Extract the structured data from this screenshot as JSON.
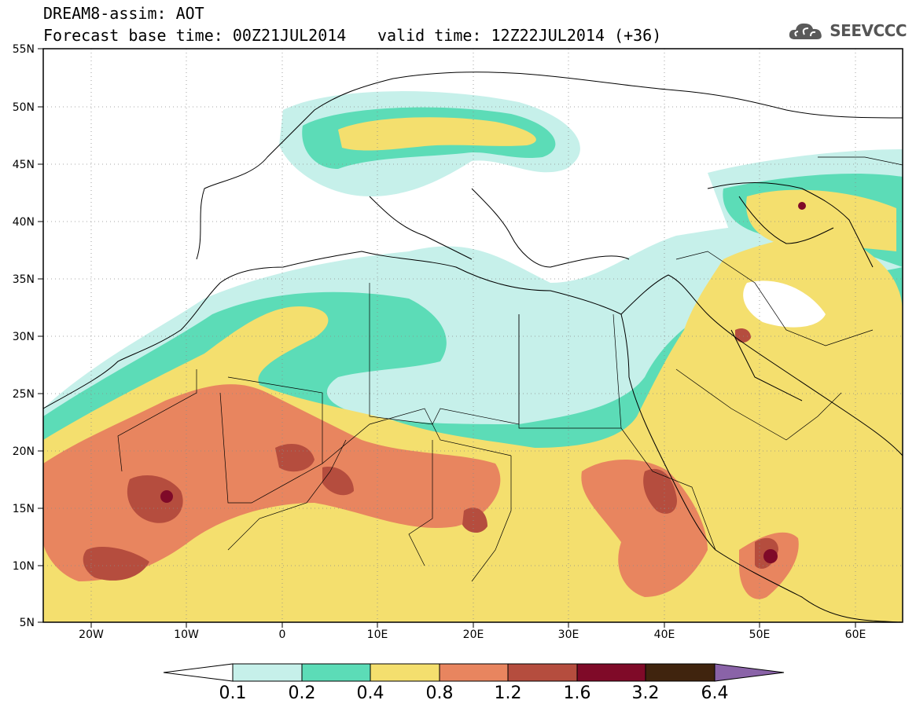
{
  "header": {
    "title_line1": "DREAM8-assim: AOT",
    "base_time_label": "Forecast base time: 00Z21JUL2014",
    "valid_time_label": "valid time: 12Z22JUL2014 (+36)"
  },
  "logo": {
    "text": "SEEVCCC",
    "icon": "cloud-icon"
  },
  "map": {
    "lat_ticks": [
      "55N",
      "50N",
      "45N",
      "40N",
      "35N",
      "30N",
      "25N",
      "20N",
      "15N",
      "10N",
      "5N"
    ],
    "lon_ticks": [
      "20W",
      "10W",
      "0",
      "10E",
      "20E",
      "30E",
      "40E",
      "50E",
      "60E"
    ],
    "colors": {
      "c0_1": "#c6f0ea",
      "c0_2": "#5cdcb7",
      "c0_4": "#f4df6e",
      "c0_8": "#e8855f",
      "c1_2": "#b54d3e",
      "c1_6": "#7f0a28",
      "c3_2": "#40240e",
      "c6_4": "#8a63a8"
    }
  },
  "colorbar": {
    "labels": [
      "0.1",
      "0.2",
      "0.4",
      "0.8",
      "1.2",
      "1.6",
      "3.2",
      "6.4"
    ],
    "colors": [
      "#c6f0ea",
      "#5cdcb7",
      "#f4df6e",
      "#e8855f",
      "#b54d3e",
      "#7f0a28",
      "#40240e"
    ],
    "under_color": "#ffffff",
    "over_color": "#8a63a8"
  }
}
